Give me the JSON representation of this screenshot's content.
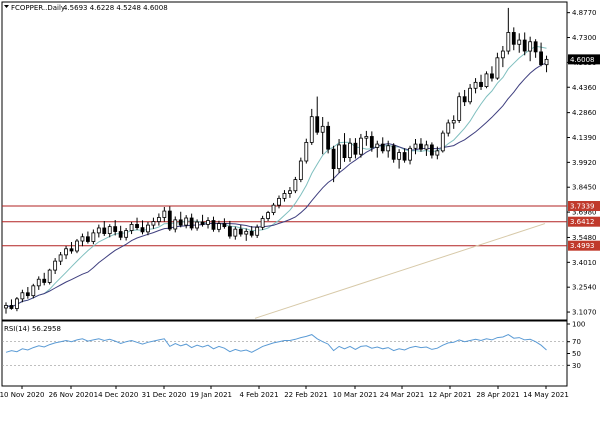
{
  "header": {
    "symbol": "FCOPPER..Daily",
    "ohlc": "4.5693 4.6228 4.5248 4.6008"
  },
  "rsi_header": "RSI(14) 56.2958",
  "colors": {
    "background": "#ffffff",
    "candle_stroke": "#000000",
    "candle_bull_fill": "#ffffff",
    "candle_bear_fill": "#000000",
    "ma_fast": "#7fbfbf",
    "ma_mid": "#3f3f7f",
    "ma_slow": "#d7c9a8",
    "level_line": "#b22222",
    "price_tag_bg": "#000000",
    "level_tag_bg": "#c0392b",
    "rsi_line": "#5b9bd5",
    "rsi_level": "#999999"
  },
  "chart_data": [
    {
      "type": "candlestick",
      "x": [
        "10 Nov 2020",
        "26 Nov 2020",
        "14 Dec 2020",
        "31 Dec 2020",
        "19 Jan 2021",
        "4 Feb 2021",
        "22 Feb 2021",
        "10 Mar 2021",
        "24 Mar 2021",
        "12 Apr 2021",
        "28 Apr 2021",
        "14 May 2021"
      ],
      "yticks": [
        3.107,
        3.254,
        3.401,
        3.548,
        3.698,
        3.845,
        3.992,
        4.139,
        4.286,
        4.436,
        4.583,
        4.73,
        4.877
      ],
      "ylim": [
        3.06,
        4.94
      ],
      "last_price": 4.6008,
      "levels": [
        3.7339,
        3.6412,
        3.4993
      ],
      "ohlc": [
        [
          3.131,
          3.164,
          3.098,
          3.146
        ],
        [
          3.146,
          3.182,
          3.121,
          3.128
        ],
        [
          3.128,
          3.196,
          3.112,
          3.185
        ],
        [
          3.185,
          3.239,
          3.165,
          3.221
        ],
        [
          3.221,
          3.255,
          3.186,
          3.204
        ],
        [
          3.204,
          3.274,
          3.188,
          3.262
        ],
        [
          3.262,
          3.318,
          3.238,
          3.301
        ],
        [
          3.301,
          3.339,
          3.265,
          3.282
        ],
        [
          3.282,
          3.363,
          3.27,
          3.355
        ],
        [
          3.355,
          3.426,
          3.332,
          3.408
        ],
        [
          3.408,
          3.462,
          3.385,
          3.445
        ],
        [
          3.445,
          3.498,
          3.42,
          3.481
        ],
        [
          3.481,
          3.521,
          3.452,
          3.468
        ],
        [
          3.468,
          3.539,
          3.455,
          3.527
        ],
        [
          3.527,
          3.571,
          3.496,
          3.552
        ],
        [
          3.552,
          3.583,
          3.512,
          3.524
        ],
        [
          3.524,
          3.595,
          3.508,
          3.575
        ],
        [
          3.575,
          3.624,
          3.548,
          3.604
        ],
        [
          3.604,
          3.645,
          3.557,
          3.571
        ],
        [
          3.571,
          3.626,
          3.549,
          3.612
        ],
        [
          3.612,
          3.651,
          3.56,
          3.583
        ],
        [
          3.583,
          3.617,
          3.532,
          3.549
        ],
        [
          3.549,
          3.604,
          3.53,
          3.589
        ],
        [
          3.589,
          3.64,
          3.568,
          3.625
        ],
        [
          3.625,
          3.665,
          3.592,
          3.606
        ],
        [
          3.606,
          3.649,
          3.566,
          3.581
        ],
        [
          3.581,
          3.639,
          3.561,
          3.621
        ],
        [
          3.621,
          3.665,
          3.599,
          3.642
        ],
        [
          3.642,
          3.69,
          3.618,
          3.666
        ],
        [
          3.666,
          3.728,
          3.642,
          3.704
        ],
        [
          3.704,
          3.731,
          3.586,
          3.598
        ],
        [
          3.598,
          3.672,
          3.578,
          3.652
        ],
        [
          3.652,
          3.7,
          3.608,
          3.621
        ],
        [
          3.621,
          3.68,
          3.602,
          3.663
        ],
        [
          3.663,
          3.689,
          3.59,
          3.604
        ],
        [
          3.604,
          3.655,
          3.588,
          3.639
        ],
        [
          3.639,
          3.682,
          3.612,
          3.625
        ],
        [
          3.625,
          3.668,
          3.601,
          3.648
        ],
        [
          3.648,
          3.671,
          3.582,
          3.596
        ],
        [
          3.596,
          3.647,
          3.579,
          3.63
        ],
        [
          3.63,
          3.661,
          3.6,
          3.612
        ],
        [
          3.612,
          3.646,
          3.541,
          3.556
        ],
        [
          3.556,
          3.612,
          3.535,
          3.597
        ],
        [
          3.597,
          3.622,
          3.553,
          3.568
        ],
        [
          3.568,
          3.601,
          3.528,
          3.584
        ],
        [
          3.584,
          3.615,
          3.548,
          3.561
        ],
        [
          3.561,
          3.624,
          3.545,
          3.608
        ],
        [
          3.608,
          3.676,
          3.592,
          3.66
        ],
        [
          3.66,
          3.705,
          3.645,
          3.695
        ],
        [
          3.695,
          3.752,
          3.68,
          3.739
        ],
        [
          3.739,
          3.796,
          3.72,
          3.779
        ],
        [
          3.779,
          3.828,
          3.76,
          3.808
        ],
        [
          3.808,
          3.846,
          3.782,
          3.824
        ],
        [
          3.824,
          3.906,
          3.81,
          3.89
        ],
        [
          3.89,
          4.02,
          3.875,
          4.0
        ],
        [
          4.0,
          4.132,
          3.985,
          4.11
        ],
        [
          4.11,
          4.308,
          4.095,
          4.262
        ],
        [
          4.262,
          4.381,
          4.155,
          4.17
        ],
        [
          4.17,
          4.26,
          4.04,
          4.205
        ],
        [
          4.205,
          4.232,
          4.045,
          4.07
        ],
        [
          4.07,
          4.09,
          3.875,
          3.955
        ],
        [
          3.955,
          4.13,
          3.93,
          4.095
        ],
        [
          4.095,
          4.165,
          3.995,
          4.02
        ],
        [
          4.02,
          4.135,
          3.995,
          4.105
        ],
        [
          4.105,
          4.135,
          4.015,
          4.04
        ],
        [
          4.04,
          4.16,
          4.02,
          4.135
        ],
        [
          4.135,
          4.178,
          4.09,
          4.145
        ],
        [
          4.145,
          4.175,
          4.055,
          4.08
        ],
        [
          4.08,
          4.12,
          4.02,
          4.1
        ],
        [
          4.1,
          4.14,
          4.045,
          4.06
        ],
        [
          4.06,
          4.12,
          4.02,
          4.09
        ],
        [
          4.09,
          4.105,
          3.99,
          4.01
        ],
        [
          4.01,
          4.07,
          3.955,
          4.05
        ],
        [
          4.05,
          4.075,
          3.99,
          4.005
        ],
        [
          4.005,
          4.09,
          3.98,
          4.075
        ],
        [
          4.075,
          4.13,
          4.04,
          4.1
        ],
        [
          4.1,
          4.135,
          4.055,
          4.07
        ],
        [
          4.07,
          4.12,
          4.03,
          4.095
        ],
        [
          4.095,
          4.11,
          4.015,
          4.035
        ],
        [
          4.035,
          4.085,
          4.01,
          4.06
        ],
        [
          4.06,
          4.18,
          4.05,
          4.165
        ],
        [
          4.165,
          4.245,
          4.145,
          4.225
        ],
        [
          4.225,
          4.27,
          4.19,
          4.24
        ],
        [
          4.24,
          4.405,
          4.225,
          4.38
        ],
        [
          4.38,
          4.42,
          4.325,
          4.35
        ],
        [
          4.35,
          4.455,
          4.335,
          4.43
        ],
        [
          4.43,
          4.49,
          4.4,
          4.465
        ],
        [
          4.465,
          4.51,
          4.42,
          4.44
        ],
        [
          4.44,
          4.53,
          4.43,
          4.515
        ],
        [
          4.515,
          4.56,
          4.47,
          4.49
        ],
        [
          4.49,
          4.64,
          4.48,
          4.61
        ],
        [
          4.61,
          4.68,
          4.555,
          4.65
        ],
        [
          4.65,
          4.905,
          4.63,
          4.76
        ],
        [
          4.76,
          4.79,
          4.655,
          4.69
        ],
        [
          4.69,
          4.755,
          4.64,
          4.715
        ],
        [
          4.715,
          4.76,
          4.625,
          4.65
        ],
        [
          4.65,
          4.735,
          4.59,
          4.705
        ],
        [
          4.705,
          4.72,
          4.61,
          4.645
        ],
        [
          4.645,
          4.7,
          4.56,
          4.57
        ],
        [
          4.5693,
          4.6228,
          4.5248,
          4.6008
        ]
      ]
    },
    {
      "type": "line",
      "title": "RSI(14)",
      "yticks": [
        30,
        50,
        70,
        100
      ],
      "ylim": [
        0,
        100
      ],
      "levels": [
        30,
        70
      ],
      "values": [
        52,
        55,
        53,
        58,
        56,
        60,
        63,
        61,
        65,
        68,
        70,
        72,
        70,
        73,
        75,
        71,
        73,
        75,
        72,
        74,
        71,
        67,
        70,
        72,
        69,
        66,
        69,
        71,
        73,
        75,
        62,
        67,
        63,
        66,
        60,
        64,
        61,
        64,
        58,
        62,
        59,
        53,
        57,
        54,
        56,
        52,
        57,
        62,
        65,
        68,
        70,
        72,
        72,
        74,
        77,
        79,
        82,
        75,
        70,
        66,
        55,
        62,
        58,
        62,
        57,
        62,
        63,
        59,
        61,
        58,
        60,
        55,
        58,
        56,
        60,
        62,
        60,
        61,
        57,
        59,
        64,
        68,
        69,
        73,
        70,
        72,
        74,
        72,
        75,
        73,
        77,
        78,
        82,
        76,
        77,
        73,
        74,
        70,
        64,
        56
      ]
    }
  ]
}
